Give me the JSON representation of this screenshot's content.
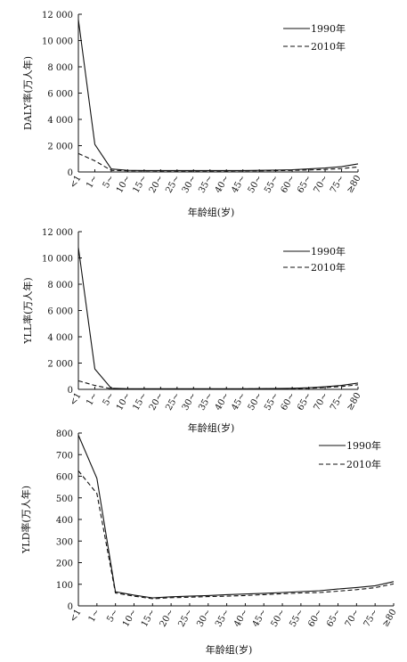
{
  "chart_data": [
    {
      "type": "line",
      "ylabel": "DALY率(万人年)",
      "xlabel": "年龄组(岁)",
      "categories": [
        "<1",
        "1~",
        "5~",
        "10~",
        "15~",
        "20~",
        "25~",
        "30~",
        "35~",
        "40~",
        "45~",
        "50~",
        "55~",
        "60~",
        "65~",
        "70~",
        "75~",
        "≥80"
      ],
      "yticks": [
        "0",
        "2 000",
        "4 000",
        "6 000",
        "8 000",
        "10 000",
        "12 000"
      ],
      "ylim": [
        0,
        12000
      ],
      "grid": false,
      "legend_position": "top-right",
      "series": [
        {
          "name": "1990年",
          "style": "solid",
          "values": [
            11600,
            2100,
            230,
            120,
            110,
            110,
            110,
            110,
            110,
            110,
            110,
            120,
            140,
            170,
            230,
            300,
            400,
            620
          ]
        },
        {
          "name": "2010年",
          "style": "dashed",
          "values": [
            1400,
            850,
            120,
            90,
            85,
            80,
            80,
            80,
            80,
            80,
            85,
            90,
            100,
            120,
            150,
            190,
            260,
            380
          ]
        }
      ]
    },
    {
      "type": "line",
      "ylabel": "YLL率(万人年)",
      "xlabel": "年龄组(岁)",
      "categories": [
        "<1",
        "1~",
        "5~",
        "10~",
        "15~",
        "20~",
        "25~",
        "30~",
        "35~",
        "40~",
        "45~",
        "50~",
        "55~",
        "60~",
        "65~",
        "70~",
        "75~",
        "≥80"
      ],
      "yticks": [
        "0",
        "2 000",
        "4 000",
        "6 000",
        "8 000",
        "10 000",
        "12 000"
      ],
      "ylim": [
        0,
        12000
      ],
      "grid": false,
      "legend_position": "top-right",
      "series": [
        {
          "name": "1990年",
          "style": "solid",
          "values": [
            10800,
            1550,
            80,
            50,
            50,
            50,
            50,
            50,
            50,
            50,
            50,
            55,
            60,
            80,
            120,
            200,
            300,
            480
          ]
        },
        {
          "name": "2010年",
          "style": "dashed",
          "values": [
            650,
            300,
            50,
            35,
            30,
            30,
            30,
            30,
            30,
            30,
            35,
            40,
            45,
            60,
            90,
            140,
            220,
            350
          ]
        }
      ]
    },
    {
      "type": "line",
      "ylabel": "YLD率(万人年)",
      "xlabel": "年龄组(岁)",
      "categories": [
        "<1",
        "1~",
        "5~",
        "10~",
        "15~",
        "20~",
        "25~",
        "30~",
        "35~",
        "40~",
        "45~",
        "50~",
        "55~",
        "60~",
        "65~",
        "70~",
        "75~",
        "≥80"
      ],
      "yticks": [
        "0",
        "100",
        "200",
        "300",
        "400",
        "500",
        "600",
        "700",
        "800"
      ],
      "ylim": [
        0,
        800
      ],
      "grid": false,
      "legend_position": "top-right",
      "series": [
        {
          "name": "1990年",
          "style": "solid",
          "values": [
            790,
            590,
            65,
            50,
            37,
            42,
            45,
            48,
            52,
            55,
            58,
            62,
            66,
            70,
            78,
            85,
            93,
            112
          ]
        },
        {
          "name": "2010年",
          "style": "dashed",
          "values": [
            625,
            520,
            60,
            45,
            33,
            38,
            40,
            43,
            45,
            48,
            52,
            56,
            60,
            62,
            68,
            75,
            84,
            102
          ]
        }
      ]
    }
  ]
}
